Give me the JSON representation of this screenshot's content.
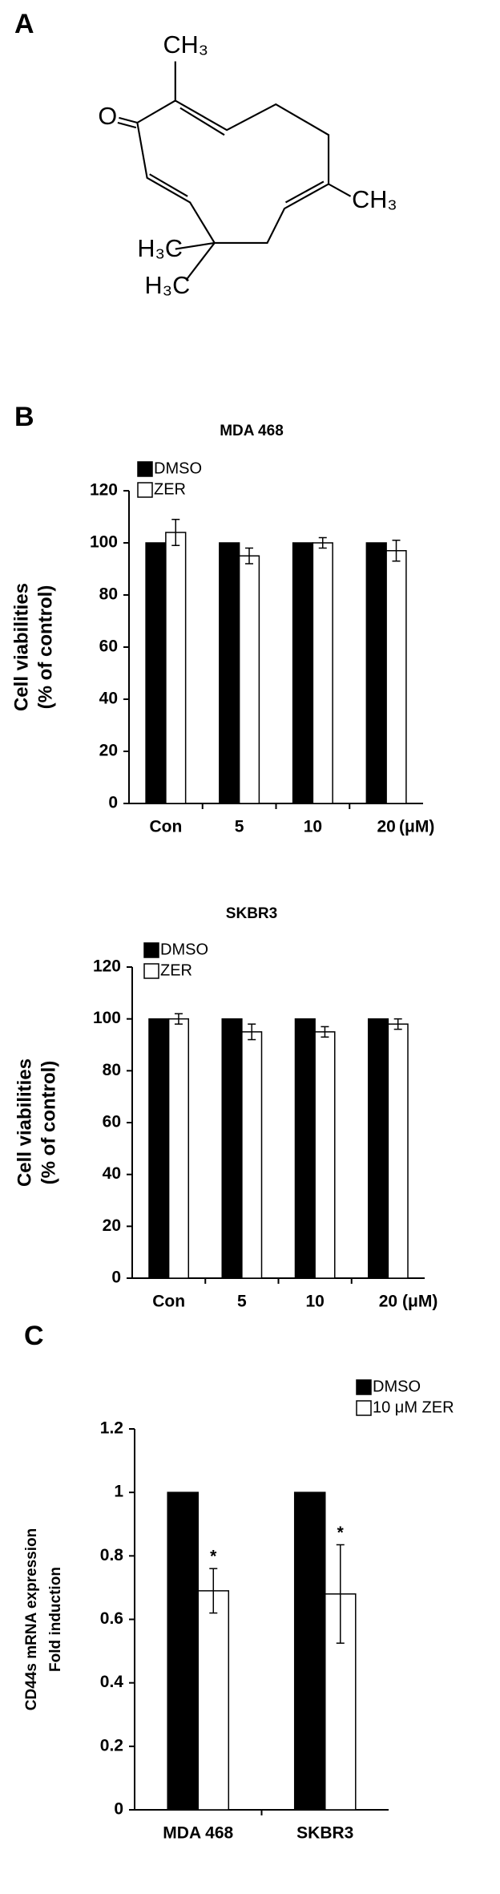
{
  "panel_labels": [
    "A",
    "B",
    "C"
  ],
  "structure": {
    "labels": [
      "O",
      "CH₃",
      "CH₃",
      "H₃C",
      "H₃C"
    ]
  },
  "chart_data": [
    {
      "type": "bar",
      "title": "MDA 468",
      "y_label": [
        "Cell viabilities",
        "(% of control)"
      ],
      "categories": [
        "Con",
        "5",
        "10",
        "20"
      ],
      "x_unit": "(μM)",
      "series": [
        {
          "name": "DMSO",
          "color": "#000000",
          "values": [
            100,
            100,
            100,
            100
          ]
        },
        {
          "name": "ZER",
          "color": "#ffffff",
          "values": [
            104,
            95,
            100,
            97
          ],
          "errors": [
            5,
            3,
            2,
            4
          ]
        }
      ],
      "ylim": [
        0,
        120
      ],
      "yticks": [
        0,
        20,
        40,
        60,
        80,
        100,
        120
      ]
    },
    {
      "type": "bar",
      "title": "SKBR3",
      "y_label": [
        "Cell viabilities",
        "(% of control)"
      ],
      "categories": [
        "Con",
        "5",
        "10",
        "20"
      ],
      "x_unit": "(μM)",
      "series": [
        {
          "name": "DMSO",
          "color": "#000000",
          "values": [
            100,
            100,
            100,
            100
          ]
        },
        {
          "name": "ZER",
          "color": "#ffffff",
          "values": [
            100,
            95,
            95,
            98
          ],
          "errors": [
            2,
            3,
            2,
            2
          ]
        }
      ],
      "ylim": [
        0,
        120
      ],
      "yticks": [
        0,
        20,
        40,
        60,
        80,
        100,
        120
      ]
    },
    {
      "type": "bar",
      "y_label": [
        "CD44s mRNA expression",
        "Fold induction"
      ],
      "categories": [
        "MDA 468",
        "SKBR3"
      ],
      "series": [
        {
          "name": "DMSO",
          "color": "#000000",
          "values": [
            1,
            1
          ]
        },
        {
          "name": "10 μM  ZER",
          "color": "#ffffff",
          "values": [
            0.69,
            0.68
          ],
          "errors": [
            0.07,
            0.155
          ]
        }
      ],
      "annotations": [
        {
          "text": "*",
          "x": "MDA 468"
        },
        {
          "text": "*",
          "x": "SKBR3"
        }
      ],
      "ylim": [
        0,
        1.2
      ],
      "yticks": [
        0,
        0.2,
        0.4,
        0.6,
        0.8,
        1,
        1.2
      ]
    }
  ]
}
